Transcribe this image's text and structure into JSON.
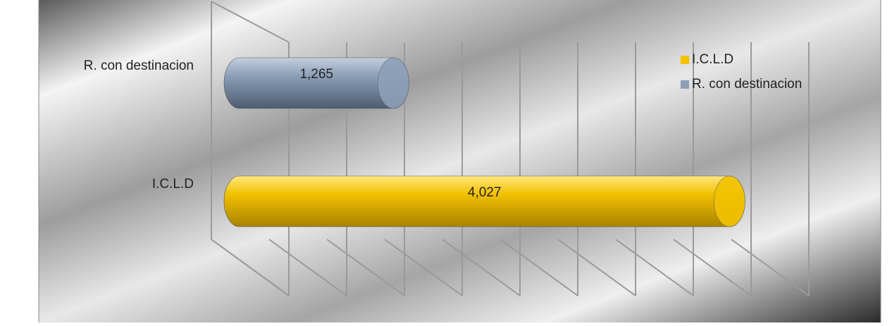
{
  "chart_data": {
    "type": "bar3d",
    "orientation": "horizontal",
    "categories": [
      "R. con destinacion",
      "I.C.L.D"
    ],
    "values": [
      1265,
      4027
    ],
    "value_labels": [
      "1,265",
      "4,027"
    ],
    "colors": [
      "#8da0b8",
      "#f2c200"
    ],
    "legend": {
      "position": "right",
      "items": [
        {
          "name": "I.C.L.D",
          "color": "#f2c200"
        },
        {
          "name": "R. con destinacion",
          "color": "#8da0b8"
        }
      ]
    },
    "xlim": [
      0,
      4500
    ],
    "xticks": [
      0,
      500,
      1000,
      1500,
      2000,
      2500,
      3000,
      3500,
      4000,
      4500
    ],
    "grid": true
  }
}
